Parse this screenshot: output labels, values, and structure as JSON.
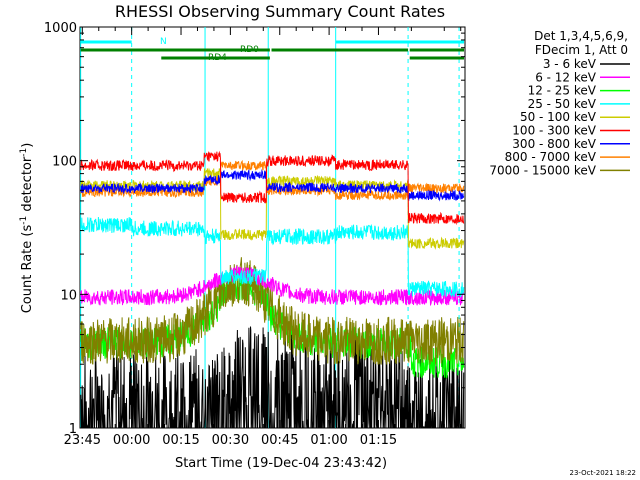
{
  "chart_data": {
    "type": "line",
    "title": "RHESSI Observing Summary Count Rates",
    "xlabel": "Start Time (19-Dec-04 23:43:42)",
    "ylabel_main": "Count Rate (s",
    "ylabel_sup1": "-1",
    "ylabel_mid": " detector",
    "ylabel_sup2": "-1",
    "ylabel_end": ")",
    "y_scale": "log",
    "ylim": [
      1,
      1000
    ],
    "xlim_minutes": [
      -15.7,
      101.3
    ],
    "x_ticks": [
      {
        "m": -15,
        "label": "23:45"
      },
      {
        "m": 0,
        "label": "00:00"
      },
      {
        "m": 15,
        "label": "00:15"
      },
      {
        "m": 30,
        "label": "00:30"
      },
      {
        "m": 45,
        "label": "00:45"
      },
      {
        "m": 60,
        "label": "01:00"
      },
      {
        "m": 75,
        "label": "01:15"
      }
    ],
    "y_ticks": [
      {
        "v": 1,
        "label": "1"
      },
      {
        "v": 10,
        "label": "10"
      },
      {
        "v": 100,
        "label": "100"
      },
      {
        "v": 1000,
        "label": "1000"
      }
    ],
    "legend_header": [
      "Det 1,3,4,5,6,9,",
      "FDecim 1, Att 0"
    ],
    "legend_placement": "right",
    "series": [
      {
        "name": "3 - 6 keV",
        "color": "#000000"
      },
      {
        "name": "6 - 12 keV",
        "color": "#ff00ff"
      },
      {
        "name": "12 - 25 keV",
        "color": "#00ff00"
      },
      {
        "name": "25 - 50 keV",
        "color": "#00ffff"
      },
      {
        "name": "50 - 100 keV",
        "color": "#cccc00"
      },
      {
        "name": "100 - 300 keV",
        "color": "#ff0000"
      },
      {
        "name": "300 - 800 keV",
        "color": "#0000ff"
      },
      {
        "name": "800 - 7000 keV",
        "color": "#ff8000"
      },
      {
        "name": "7000 - 15000 keV",
        "color": "#808000"
      }
    ],
    "series_profiles": [
      {
        "idx": 0,
        "base": 2.0,
        "noise": 0.35,
        "min": 1,
        "bands": [
          [
            -15.5,
            28,
            1.8
          ],
          [
            28,
            42,
            2.6
          ],
          [
            42,
            83,
            2.3
          ],
          [
            83,
            101,
            1.6
          ]
        ]
      },
      {
        "idx": 1,
        "base": 9.5,
        "noise": 0.06,
        "peak": [
          33,
          12,
          0.18
        ]
      },
      {
        "idx": 2,
        "base": 4.3,
        "noise": 0.12,
        "peak": [
          33,
          13,
          0.35
        ],
        "segs": [
          [
            -15.5,
            27,
            4.3
          ],
          [
            27,
            42,
            5.3
          ],
          [
            42,
            85,
            4.3
          ],
          [
            85,
            101,
            3.1
          ]
        ]
      },
      {
        "idx": 3,
        "segs": [
          [
            -15.5,
            0,
            33
          ],
          [
            0,
            22,
            31
          ],
          [
            22,
            27,
            27
          ],
          [
            27,
            41,
            13.5
          ],
          [
            41,
            62,
            27
          ],
          [
            62,
            84,
            29
          ],
          [
            84,
            101,
            11
          ]
        ],
        "noise": 0.06
      },
      {
        "idx": 4,
        "segs": [
          [
            -15.5,
            22,
            65
          ],
          [
            22,
            27,
            80
          ],
          [
            27,
            41,
            28
          ],
          [
            41,
            62,
            70
          ],
          [
            62,
            84,
            65
          ],
          [
            84,
            101,
            24
          ]
        ],
        "noise": 0.04
      },
      {
        "idx": 5,
        "segs": [
          [
            -15.5,
            22,
            92
          ],
          [
            22,
            27,
            108
          ],
          [
            27,
            41,
            53
          ],
          [
            41,
            62,
            100
          ],
          [
            62,
            84,
            93
          ],
          [
            84,
            101,
            37
          ]
        ],
        "noise": 0.04
      },
      {
        "idx": 6,
        "segs": [
          [
            -15.5,
            22,
            62
          ],
          [
            22,
            27,
            72
          ],
          [
            27,
            41,
            78
          ],
          [
            41,
            62,
            63
          ],
          [
            62,
            84,
            62
          ],
          [
            84,
            101,
            55
          ]
        ],
        "noise": 0.035
      },
      {
        "idx": 7,
        "segs": [
          [
            -15.5,
            22,
            58
          ],
          [
            22,
            27,
            70
          ],
          [
            27,
            41,
            92
          ],
          [
            41,
            62,
            60
          ],
          [
            62,
            84,
            55
          ],
          [
            84,
            101,
            62
          ]
        ],
        "noise": 0.035
      },
      {
        "idx": 8,
        "base": 4.5,
        "noise": 0.18,
        "peak": [
          33,
          12,
          0.45
        ]
      }
    ],
    "flags": [
      {
        "name": "N",
        "color": "#00ffff",
        "segments": [
          [
            -15.5,
            0
          ],
          [
            62,
            101
          ]
        ],
        "level": 0
      },
      {
        "name": "RD0",
        "color": "#008000",
        "segments": [
          [
            -15.5,
            42
          ],
          [
            42.5,
            84
          ],
          [
            84.5,
            101
          ]
        ],
        "level": 1
      },
      {
        "name": "RD4",
        "color": "#008000",
        "segments": [
          [
            9,
            42
          ],
          [
            84.5,
            101
          ]
        ],
        "level": 2
      }
    ],
    "night_boundaries_solid": [
      -15.5,
      22.3,
      41.5,
      62
    ],
    "night_boundaries_dashed": [
      0,
      84,
      99.5
    ]
  },
  "footer_date": "23-Oct-2021 18:22"
}
